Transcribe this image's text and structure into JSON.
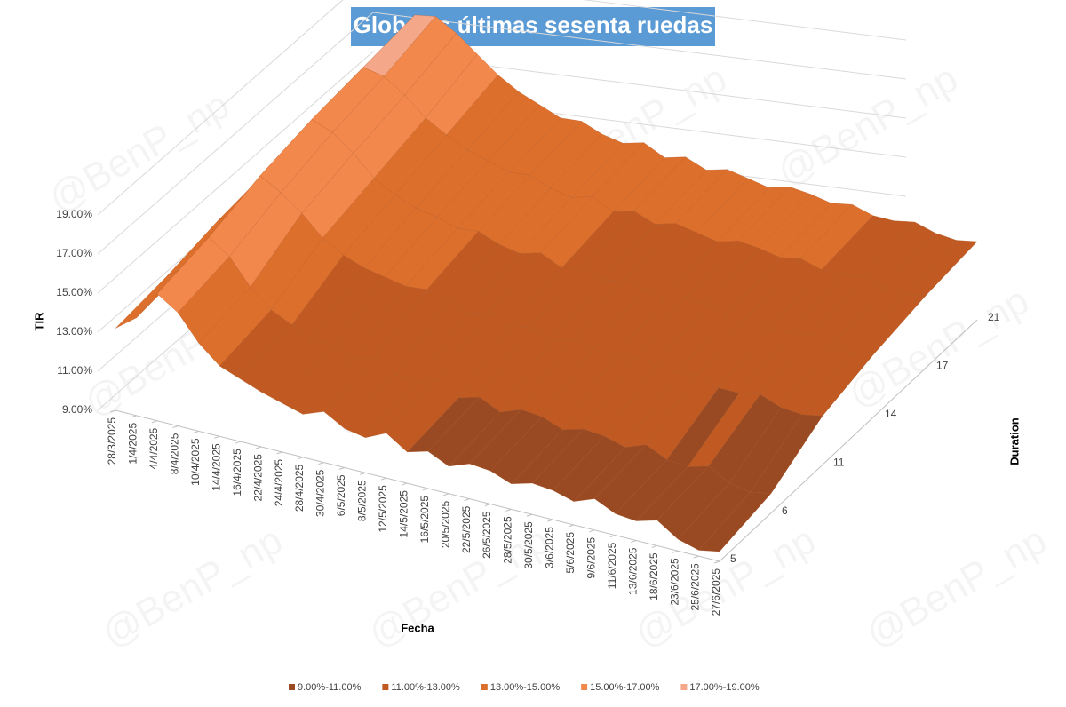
{
  "chart_data": {
    "type": "surface",
    "title": "Globales últimas sesenta ruedas",
    "watermark": "@BenP_np",
    "x_label": "Fecha",
    "y_label": "Duration",
    "z_label": "TIR",
    "categories": [
      "28/3/2025",
      "1/4/2025",
      "4/4/2025",
      "8/4/2025",
      "10/4/2025",
      "14/4/2025",
      "16/4/2025",
      "22/4/2025",
      "24/4/2025",
      "28/4/2025",
      "30/4/2025",
      "6/5/2025",
      "8/5/2025",
      "12/5/2025",
      "14/5/2025",
      "16/5/2025",
      "20/5/2025",
      "22/5/2025",
      "26/5/2025",
      "28/5/2025",
      "30/5/2025",
      "3/6/2025",
      "5/6/2025",
      "9/6/2025",
      "11/6/2025",
      "13/6/2025",
      "18/6/2025",
      "23/6/2025",
      "25/6/2025",
      "27/6/2025"
    ],
    "series": [
      {
        "name": "5",
        "values": [
          13.2,
          14.0,
          15.5,
          14.8,
          13.5,
          12.6,
          12.2,
          11.8,
          11.5,
          11.2,
          11.6,
          11.0,
          10.8,
          11.3,
          10.6,
          10.9,
          10.4,
          10.8,
          10.7,
          10.3,
          10.6,
          10.5,
          10.2,
          10.6,
          10.1,
          10.0,
          10.3,
          9.6,
          9.3,
          9.5
        ]
      },
      {
        "name": "6",
        "values": [
          13.4,
          14.2,
          15.9,
          15.2,
          13.9,
          13.0,
          12.5,
          12.1,
          11.9,
          11.5,
          11.9,
          11.3,
          11.1,
          11.6,
          10.9,
          11.2,
          10.7,
          11.1,
          11.0,
          10.6,
          10.9,
          10.8,
          10.5,
          10.9,
          10.4,
          10.3,
          10.6,
          10.0,
          9.8,
          10.0
        ]
      },
      {
        "name": "11",
        "values": [
          13.8,
          14.3,
          16.6,
          16.0,
          15.2,
          14.2,
          13.6,
          13.2,
          13.0,
          12.8,
          12.9,
          12.5,
          12.2,
          12.6,
          12.0,
          12.3,
          11.9,
          12.2,
          12.0,
          11.8,
          12.1,
          12.0,
          11.8,
          12.0,
          11.6,
          11.6,
          11.8,
          11.4,
          11.3,
          11.5
        ]
      },
      {
        "name": "14",
        "values": [
          14.0,
          14.6,
          17.0,
          16.6,
          15.8,
          14.8,
          14.2,
          13.8,
          13.6,
          13.3,
          13.4,
          13.0,
          12.8,
          13.1,
          12.6,
          12.9,
          12.5,
          12.8,
          12.6,
          12.4,
          12.7,
          12.6,
          12.4,
          12.6,
          12.2,
          12.2,
          12.4,
          12.1,
          12.0,
          12.2
        ]
      },
      {
        "name": "17",
        "values": [
          14.2,
          14.8,
          17.2,
          17.0,
          16.3,
          15.4,
          14.8,
          14.3,
          14.0,
          13.7,
          13.8,
          13.4,
          13.2,
          13.5,
          13.0,
          13.3,
          12.9,
          13.2,
          13.0,
          12.8,
          13.1,
          13.0,
          12.8,
          13.0,
          12.7,
          12.7,
          12.9,
          12.6,
          12.5,
          12.7
        ]
      },
      {
        "name": "21",
        "values": [
          14.3,
          15.0,
          17.4,
          17.6,
          17.0,
          16.2,
          15.4,
          14.8,
          14.4,
          14.0,
          14.1,
          13.7,
          13.5,
          13.8,
          13.3,
          13.6,
          13.2,
          13.5,
          13.3,
          13.1,
          13.4,
          13.3,
          13.1,
          13.3,
          13.0,
          13.0,
          13.2,
          12.9,
          12.8,
          13.0
        ]
      }
    ],
    "zlim": [
      9,
      19
    ],
    "zticks": [
      {
        "value": 9,
        "label": "9.00%"
      },
      {
        "value": 11,
        "label": "11.00%"
      },
      {
        "value": 13,
        "label": "13.00%"
      },
      {
        "value": 15,
        "label": "15.00%"
      },
      {
        "value": 17,
        "label": "17.00%"
      },
      {
        "value": 19,
        "label": "19.00%"
      }
    ],
    "bands": [
      {
        "name": "9.00%-11.00%",
        "color": "#9a4a22"
      },
      {
        "name": "11.00%-13.00%",
        "color": "#c05a22"
      },
      {
        "name": "13.00%-15.00%",
        "color": "#dd6f2c"
      },
      {
        "name": "15.00%-17.00%",
        "color": "#f2884c"
      },
      {
        "name": "17.00%-19.00%",
        "color": "#f4a889"
      }
    ]
  }
}
